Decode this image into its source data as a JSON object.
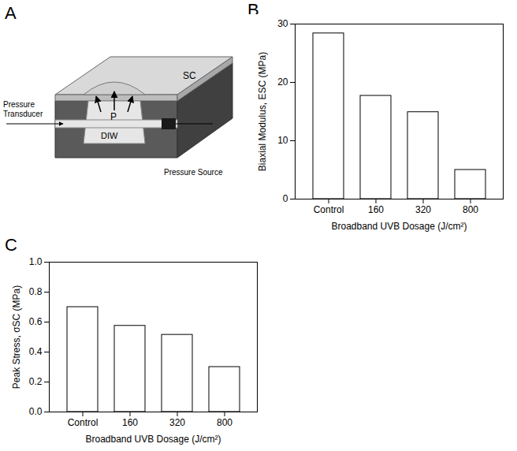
{
  "diagram": {
    "panel": "A",
    "labels": {
      "sc": "SC",
      "p": "P",
      "diw": "DIW",
      "transducer": "Pressure Transducer",
      "source": "Pressure Source"
    }
  },
  "chart_data": [
    {
      "panel": "B",
      "type": "bar",
      "categories": [
        "Control",
        "160",
        "320",
        "800"
      ],
      "values": [
        28.4,
        17.7,
        14.9,
        5.0
      ],
      "color": "#ffffff",
      "x_label": "Broadband UVB Dosage (J/cm²)",
      "y_label": "Biaxial Modulus, ESC (MPa)",
      "ylim": [
        0,
        30
      ],
      "yticks": [
        0,
        10,
        20,
        30
      ],
      "grid": false
    },
    {
      "panel": "C",
      "type": "bar",
      "categories": [
        "Control",
        "160",
        "320",
        "800"
      ],
      "values": [
        0.7,
        0.575,
        0.515,
        0.3
      ],
      "color": "#ffffff",
      "x_label": "Broadband UVB Dosage (J/cm²)",
      "y_label": "Peak Stress, σSC (MPa)",
      "ylim": [
        0,
        1
      ],
      "yticks": [
        {
          "value": 0,
          "label": "0.0"
        },
        0.2,
        0.4,
        0.6,
        0.8,
        {
          "value": 1,
          "label": "1.0"
        }
      ],
      "grid": false
    }
  ]
}
